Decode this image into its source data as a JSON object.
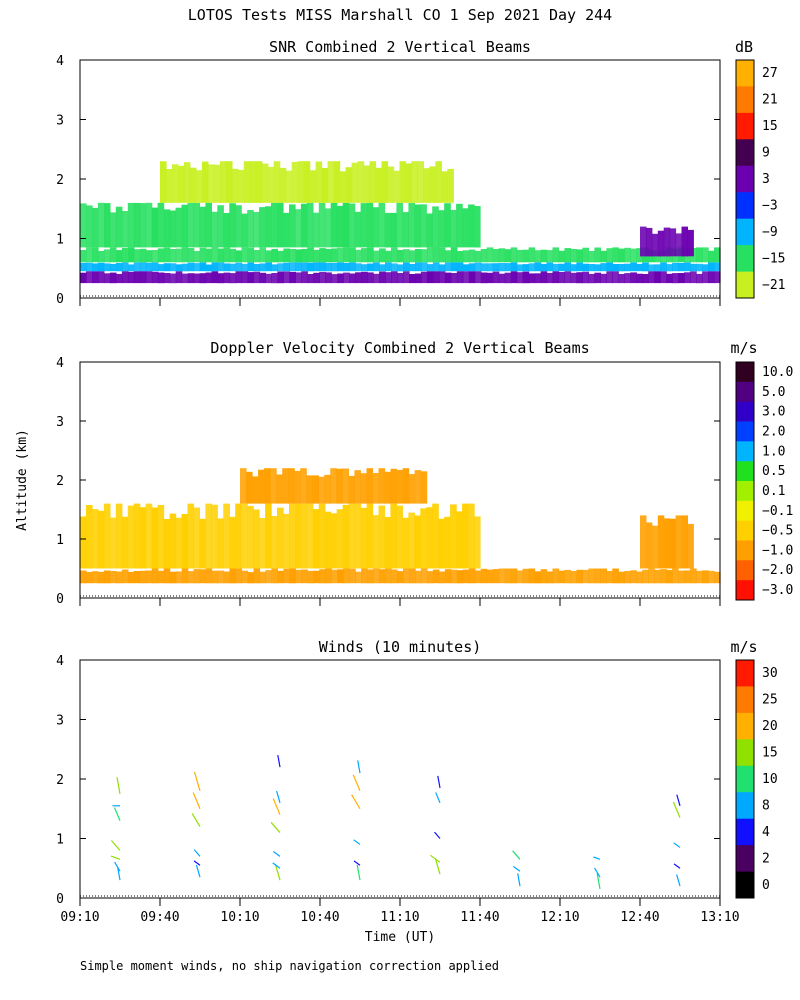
{
  "figure": {
    "title": "LOTOS Tests MISS Marshall CO   1 Sep 2021 Day 244",
    "ylabel": "Altitude (km)",
    "xlabel": "Time (UT)",
    "footnote": "Simple moment winds, no ship navigation correction applied",
    "x_tick_labels": [
      "09:10",
      "09:40",
      "10:10",
      "10:40",
      "11:10",
      "11:40",
      "12:10",
      "12:40",
      "13:10"
    ],
    "y_tick_labels": [
      "0",
      "1",
      "2",
      "3",
      "4"
    ]
  },
  "chart_data": [
    {
      "type": "heatmap",
      "title": "SNR Combined 2 Vertical Beams",
      "xlabel": "",
      "ylabel": "Altitude (km)",
      "xlim": [
        "09:10",
        "13:10"
      ],
      "ylim": [
        0,
        4
      ],
      "colorbar": {
        "unit": "dB",
        "labels": [
          "27",
          "21",
          "15",
          "9",
          "3",
          "−3",
          "−9",
          "−15",
          "−21"
        ],
        "colors": [
          "#ffb000",
          "#ff7a00",
          "#ff1a00",
          "#440050",
          "#6a00b0",
          "#0030ff",
          "#00b4ff",
          "#28e060",
          "#c8f020"
        ]
      },
      "field": [
        {
          "time_range": [
            "09:10",
            "13:10"
          ],
          "altitude_km": [
            0.25,
            0.45
          ],
          "value_db": 3
        },
        {
          "time_range": [
            "09:10",
            "13:10"
          ],
          "altitude_km": [
            0.45,
            0.6
          ],
          "value_db": -9
        },
        {
          "time_range": [
            "09:10",
            "13:10"
          ],
          "altitude_km": [
            0.6,
            0.85
          ],
          "value_db": -15
        },
        {
          "time_range": [
            "09:10",
            "11:40"
          ],
          "altitude_km": [
            0.85,
            1.6
          ],
          "value_db": -15
        },
        {
          "time_range": [
            "09:40",
            "11:30"
          ],
          "altitude_km": [
            1.6,
            2.3
          ],
          "value_db": -21
        },
        {
          "time_range": [
            "12:40",
            "13:00"
          ],
          "altitude_km": [
            0.7,
            1.2
          ],
          "value_db": 3
        }
      ]
    },
    {
      "type": "heatmap",
      "title": "Doppler Velocity Combined 2 Vertical Beams",
      "xlabel": "",
      "ylabel": "Altitude (km)",
      "xlim": [
        "09:10",
        "13:10"
      ],
      "ylim": [
        0,
        4
      ],
      "colorbar": {
        "unit": "m/s",
        "labels": [
          "10.0",
          "5.0",
          "3.0",
          "2.0",
          "1.0",
          "0.5",
          "0.1",
          "−0.1",
          "−0.5",
          "−1.0",
          "−2.0",
          "−3.0"
        ],
        "colors": [
          "#300020",
          "#500080",
          "#3000c8",
          "#0040ff",
          "#00b4ff",
          "#20e020",
          "#a0f000",
          "#f0f000",
          "#ffd000",
          "#ffa000",
          "#ff6000",
          "#ff1000"
        ]
      },
      "field": [
        {
          "time_range": [
            "09:10",
            "13:10"
          ],
          "altitude_km": [
            0.25,
            0.5
          ],
          "value_ms": -1.0
        },
        {
          "time_range": [
            "09:10",
            "11:40"
          ],
          "altitude_km": [
            0.5,
            1.6
          ],
          "value_ms": -0.5
        },
        {
          "time_range": [
            "10:10",
            "11:20"
          ],
          "altitude_km": [
            1.6,
            2.2
          ],
          "value_ms": -1.0
        },
        {
          "time_range": [
            "12:40",
            "13:00"
          ],
          "altitude_km": [
            0.5,
            1.4
          ],
          "value_ms": -1.0
        }
      ]
    },
    {
      "type": "scatter",
      "title": "Winds (10 minutes)",
      "xlabel": "Time (UT)",
      "ylabel": "Altitude (km)",
      "xlim": [
        "09:10",
        "13:10"
      ],
      "ylim": [
        0,
        4
      ],
      "colorbar": {
        "unit": "m/s",
        "labels": [
          "30",
          "25",
          "20",
          "15",
          "10",
          "8",
          "4",
          "2",
          "0"
        ],
        "colors": [
          "#ff1a00",
          "#ff7a00",
          "#ffb000",
          "#90e000",
          "#20e070",
          "#00a8ff",
          "#1010ff",
          "#4a0060",
          "#000000"
        ]
      },
      "profiles": [
        {
          "time": "09:25",
          "barbs": [
            {
              "altitude_km": 0.3,
              "speed_ms": 5,
              "dir_deg": 200
            },
            {
              "altitude_km": 0.45,
              "speed_ms": 6,
              "dir_deg": 230
            },
            {
              "altitude_km": 0.65,
              "speed_ms": 12,
              "dir_deg": 280
            },
            {
              "altitude_km": 0.8,
              "speed_ms": 14,
              "dir_deg": 300
            },
            {
              "altitude_km": 1.3,
              "speed_ms": 10,
              "dir_deg": 320
            },
            {
              "altitude_km": 1.55,
              "speed_ms": 7,
              "dir_deg": 270
            },
            {
              "altitude_km": 1.75,
              "speed_ms": 11,
              "dir_deg": 340
            }
          ]
        },
        {
          "time": "09:55",
          "barbs": [
            {
              "altitude_km": 0.35,
              "speed_ms": 6,
              "dir_deg": 210
            },
            {
              "altitude_km": 0.55,
              "speed_ms": 4,
              "dir_deg": 250
            },
            {
              "altitude_km": 0.7,
              "speed_ms": 5,
              "dir_deg": 300
            },
            {
              "altitude_km": 1.2,
              "speed_ms": 15,
              "dir_deg": 310
            },
            {
              "altitude_km": 1.5,
              "speed_ms": 16,
              "dir_deg": 320
            },
            {
              "altitude_km": 1.8,
              "speed_ms": 17,
              "dir_deg": 330
            }
          ]
        },
        {
          "time": "10:25",
          "barbs": [
            {
              "altitude_km": 0.3,
              "speed_ms": 12,
              "dir_deg": 210
            },
            {
              "altitude_km": 0.5,
              "speed_ms": 8,
              "dir_deg": 250
            },
            {
              "altitude_km": 0.7,
              "speed_ms": 6,
              "dir_deg": 290
            },
            {
              "altitude_km": 1.1,
              "speed_ms": 15,
              "dir_deg": 300
            },
            {
              "altitude_km": 1.4,
              "speed_ms": 16,
              "dir_deg": 320
            },
            {
              "altitude_km": 1.6,
              "speed_ms": 5,
              "dir_deg": 330
            },
            {
              "altitude_km": 2.2,
              "speed_ms": 4,
              "dir_deg": 340
            }
          ]
        },
        {
          "time": "10:55",
          "barbs": [
            {
              "altitude_km": 0.3,
              "speed_ms": 9,
              "dir_deg": 200
            },
            {
              "altitude_km": 0.55,
              "speed_ms": 4,
              "dir_deg": 250
            },
            {
              "altitude_km": 0.9,
              "speed_ms": 5,
              "dir_deg": 290
            },
            {
              "altitude_km": 1.5,
              "speed_ms": 17,
              "dir_deg": 310
            },
            {
              "altitude_km": 1.8,
              "speed_ms": 16,
              "dir_deg": 320
            },
            {
              "altitude_km": 2.1,
              "speed_ms": 5,
              "dir_deg": 340
            }
          ]
        },
        {
          "time": "11:25",
          "barbs": [
            {
              "altitude_km": 0.4,
              "speed_ms": 12,
              "dir_deg": 210
            },
            {
              "altitude_km": 0.6,
              "speed_ms": 15,
              "dir_deg": 250
            },
            {
              "altitude_km": 1.0,
              "speed_ms": 4,
              "dir_deg": 300
            },
            {
              "altitude_km": 1.6,
              "speed_ms": 5,
              "dir_deg": 320
            },
            {
              "altitude_km": 1.85,
              "speed_ms": 4,
              "dir_deg": 340
            }
          ]
        },
        {
          "time": "11:55",
          "barbs": [
            {
              "altitude_km": 0.2,
              "speed_ms": 5,
              "dir_deg": 200
            },
            {
              "altitude_km": 0.45,
              "speed_ms": 6,
              "dir_deg": 250
            },
            {
              "altitude_km": 0.65,
              "speed_ms": 10,
              "dir_deg": 300
            }
          ]
        },
        {
          "time": "12:25",
          "barbs": [
            {
              "altitude_km": 0.15,
              "speed_ms": 10,
              "dir_deg": 200
            },
            {
              "altitude_km": 0.35,
              "speed_ms": 6,
              "dir_deg": 230
            },
            {
              "altitude_km": 0.65,
              "speed_ms": 5,
              "dir_deg": 280
            }
          ]
        },
        {
          "time": "12:55",
          "barbs": [
            {
              "altitude_km": 0.2,
              "speed_ms": 5,
              "dir_deg": 210
            },
            {
              "altitude_km": 0.5,
              "speed_ms": 4,
              "dir_deg": 250
            },
            {
              "altitude_km": 0.85,
              "speed_ms": 5,
              "dir_deg": 290
            },
            {
              "altitude_km": 1.35,
              "speed_ms": 15,
              "dir_deg": 320
            },
            {
              "altitude_km": 1.55,
              "speed_ms": 4,
              "dir_deg": 330
            }
          ]
        }
      ]
    }
  ]
}
